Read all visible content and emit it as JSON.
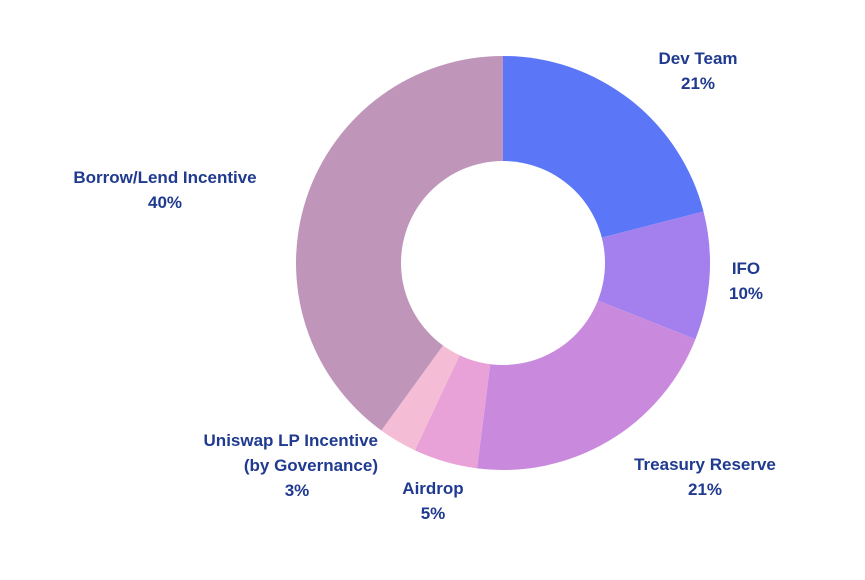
{
  "chart_data": {
    "type": "pie",
    "donut": true,
    "title": "",
    "slices": [
      {
        "label": "Dev Team",
        "label_line2": "",
        "value": 21,
        "value_label": "21%",
        "color": "#5b77f8"
      },
      {
        "label": "IFO",
        "label_line2": "",
        "value": 10,
        "value_label": "10%",
        "color": "#a380ed"
      },
      {
        "label": "Treasury Reserve",
        "label_line2": "",
        "value": 21,
        "value_label": "21%",
        "color": "#c98ade"
      },
      {
        "label": "Airdrop",
        "label_line2": "",
        "value": 5,
        "value_label": "5%",
        "color": "#e8a2d8"
      },
      {
        "label": "Uniswap LP Incentive",
        "label_line2": "(by Governance)",
        "value": 3,
        "value_label": "3%",
        "color": "#f5bcd5"
      },
      {
        "label": "Borrow/Lend Incentive",
        "label_line2": "",
        "value": 40,
        "value_label": "40%",
        "color": "#bf96ba"
      }
    ]
  }
}
